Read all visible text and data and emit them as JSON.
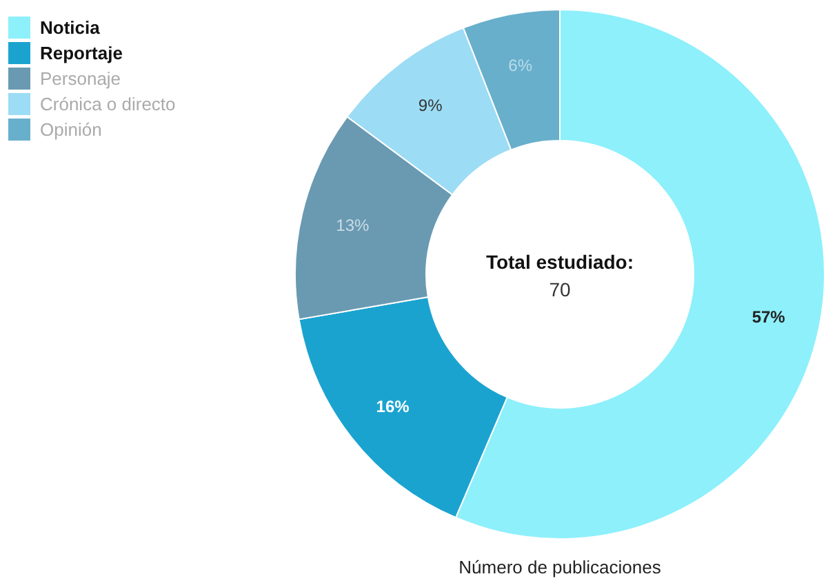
{
  "chart_data": {
    "type": "donut",
    "categories": [
      "Noticia",
      "Reportaje",
      "Personaje",
      "Crónica o directo",
      "Opinión"
    ],
    "values": [
      57,
      16,
      13,
      9,
      6
    ],
    "colors": [
      "#8df0fb",
      "#1ba3d0",
      "#6a9ab2",
      "#9cdcf5",
      "#68afcb"
    ],
    "value_labels": [
      "57%",
      "16%",
      "13%",
      "9%",
      "6%"
    ],
    "legend": "top left",
    "annotations": [
      "Total estudiado:",
      "70",
      "Número de publicaciones"
    ]
  }
}
